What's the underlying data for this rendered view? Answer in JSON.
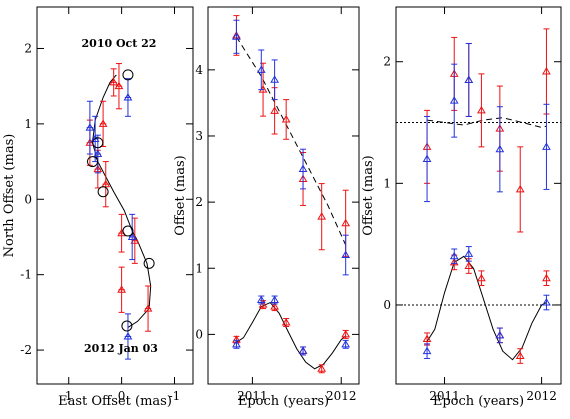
{
  "chart_data": [
    {
      "type": "scatter",
      "panel": "left",
      "xlabel": "East Offset (mas)",
      "ylabel": "North Offset (mas)",
      "xlim": [
        1.6,
        -1.35
      ],
      "ylim": [
        -2.45,
        2.55
      ],
      "xticks": [
        1,
        0,
        -1
      ],
      "yticks": [
        -2,
        -1,
        0,
        1,
        2
      ],
      "annotations": [
        "2010 Oct 22",
        "2012 Jan 03"
      ],
      "model_curve": {
        "x": [
          0.1,
          0.22,
          0.35,
          0.5,
          0.55,
          0.45,
          0.3,
          0.15,
          -0.05,
          -0.2,
          -0.3,
          -0.48,
          -0.55,
          -0.52,
          -0.3,
          -0.12
        ],
        "y": [
          1.65,
          1.55,
          1.35,
          1.05,
          0.75,
          0.5,
          0.3,
          0.1,
          -0.15,
          -0.42,
          -0.55,
          -0.85,
          -1.15,
          -1.45,
          -1.62,
          -1.7
        ]
      },
      "epoch_markers": {
        "x": [
          -0.12,
          0.45,
          0.55,
          0.35,
          -0.12,
          -0.52,
          -0.1
        ],
        "y": [
          1.65,
          0.75,
          0.5,
          0.1,
          -0.42,
          -0.85,
          -1.68
        ]
      },
      "series": [
        {
          "name": "red",
          "color": "#ee1111",
          "x": [
            0.15,
            0.05,
            0.35,
            0.6,
            0.45,
            0.3,
            0.0,
            -0.25,
            0.0,
            -0.5
          ],
          "y": [
            1.55,
            1.5,
            1.0,
            0.75,
            0.4,
            0.2,
            -0.45,
            -0.55,
            -1.2,
            -1.45
          ],
          "xerr": [
            0.06,
            0.06,
            0.06,
            0.06,
            0.06,
            0.06,
            0.06,
            0.06,
            0.06,
            0.06
          ],
          "yerr": [
            0.18,
            0.3,
            0.3,
            0.3,
            0.25,
            0.3,
            0.25,
            0.3,
            0.3,
            0.3
          ]
        },
        {
          "name": "blue",
          "color": "#2233dd",
          "x": [
            -0.12,
            0.6,
            0.5,
            0.45,
            -0.2,
            -0.12
          ],
          "y": [
            1.35,
            0.95,
            0.8,
            0.6,
            -0.5,
            -1.82
          ],
          "xerr": [
            0.06,
            0.06,
            0.06,
            0.06,
            0.06,
            0.06
          ],
          "yerr": [
            0.25,
            0.35,
            0.3,
            0.25,
            0.3,
            0.3
          ]
        }
      ]
    },
    {
      "type": "line",
      "panel": "middle",
      "xlabel": "Epoch (years)",
      "ylabel": "Offset (mas)",
      "xlim": [
        2010.5,
        2012.2
      ],
      "ylim": [
        -0.75,
        4.95
      ],
      "xticks": [
        2011,
        2012
      ],
      "yticks": [
        0,
        1,
        2,
        3,
        4
      ],
      "dashed_model": {
        "x": [
          2010.82,
          2011.1,
          2011.35,
          2011.6,
          2011.85,
          2012.05
        ],
        "y": [
          4.5,
          3.9,
          3.25,
          2.6,
          1.95,
          1.35
        ]
      },
      "solid_model": {
        "x": [
          2010.82,
          2010.9,
          2011.0,
          2011.1,
          2011.2,
          2011.3,
          2011.4,
          2011.5,
          2011.6,
          2011.7,
          2011.8,
          2011.9,
          2012.0,
          2012.05
        ],
        "y": [
          -0.12,
          -0.05,
          0.18,
          0.42,
          0.48,
          0.32,
          0.05,
          -0.22,
          -0.42,
          -0.52,
          -0.45,
          -0.28,
          -0.08,
          -0.02
        ]
      },
      "series": [
        {
          "name": "red",
          "color": "#ee1111",
          "x": [
            2010.82,
            2011.12,
            2011.25,
            2011.38,
            2011.57,
            2011.78,
            2012.05
          ],
          "y": [
            4.52,
            3.7,
            3.38,
            3.25,
            2.35,
            1.78,
            1.68
          ],
          "yerr": [
            0.3,
            0.4,
            0.35,
            0.3,
            0.4,
            0.5,
            0.5
          ]
        },
        {
          "name": "blue",
          "color": "#2233dd",
          "x": [
            2010.82,
            2011.1,
            2011.25,
            2011.57,
            2012.05
          ],
          "y": [
            4.5,
            4.0,
            3.85,
            2.5,
            1.2
          ],
          "yerr": [
            0.25,
            0.3,
            0.3,
            0.3,
            0.3
          ]
        },
        {
          "name": "red-residual",
          "color": "#ee1111",
          "x": [
            2010.82,
            2011.12,
            2011.25,
            2011.38,
            2011.57,
            2011.78,
            2012.05
          ],
          "y": [
            -0.08,
            0.45,
            0.42,
            0.18,
            -0.25,
            -0.52,
            0.0
          ],
          "yerr": [
            0.05,
            0.06,
            0.06,
            0.06,
            0.06,
            0.06,
            0.06
          ]
        },
        {
          "name": "blue-residual",
          "color": "#2233dd",
          "x": [
            2010.82,
            2011.1,
            2011.25,
            2011.57,
            2012.05
          ],
          "y": [
            -0.15,
            0.52,
            0.52,
            -0.25,
            -0.15
          ],
          "yerr": [
            0.06,
            0.06,
            0.06,
            0.06,
            0.06
          ]
        }
      ]
    },
    {
      "type": "line",
      "panel": "right",
      "xlabel": "Epoch (years)",
      "ylabel": "Offset (mas)",
      "xlim": [
        2010.5,
        2012.2
      ],
      "ylim": [
        -0.65,
        2.45
      ],
      "xticks": [
        2011,
        2012
      ],
      "yticks": [
        0,
        1,
        2
      ],
      "reference_lines": [
        1.5,
        0
      ],
      "dashed_model": {
        "x": [
          2010.82,
          2011.0,
          2011.2,
          2011.4,
          2011.6,
          2011.8,
          2012.0,
          2012.05
        ],
        "y": [
          1.52,
          1.5,
          1.48,
          1.52,
          1.54,
          1.5,
          1.46,
          1.47
        ]
      },
      "solid_model": {
        "x": [
          2010.82,
          2010.9,
          2011.0,
          2011.1,
          2011.2,
          2011.3,
          2011.4,
          2011.5,
          2011.6,
          2011.7,
          2011.8,
          2011.9,
          2012.0,
          2012.05
        ],
        "y": [
          -0.3,
          -0.2,
          0.1,
          0.35,
          0.4,
          0.3,
          0.05,
          -0.2,
          -0.38,
          -0.45,
          -0.35,
          -0.15,
          0.0,
          0.02
        ]
      },
      "series": [
        {
          "name": "red",
          "color": "#ee1111",
          "x": [
            2010.82,
            2011.1,
            2011.25,
            2011.38,
            2011.57,
            2011.78,
            2012.05
          ],
          "y": [
            1.3,
            1.9,
            1.85,
            1.6,
            1.45,
            0.95,
            1.92
          ],
          "yerr": [
            0.3,
            0.3,
            0.3,
            0.3,
            0.35,
            0.35,
            0.35
          ]
        },
        {
          "name": "blue",
          "color": "#2233dd",
          "x": [
            2010.82,
            2011.1,
            2011.25,
            2011.57,
            2012.05
          ],
          "y": [
            1.2,
            1.68,
            1.85,
            1.28,
            1.3
          ],
          "yerr": [
            0.35,
            0.3,
            0.3,
            0.35,
            0.35
          ]
        },
        {
          "name": "red-residual",
          "color": "#ee1111",
          "x": [
            2010.82,
            2011.1,
            2011.25,
            2011.38,
            2011.57,
            2011.78,
            2012.05
          ],
          "y": [
            -0.28,
            0.35,
            0.32,
            0.22,
            -0.25,
            -0.42,
            0.22
          ],
          "yerr": [
            0.05,
            0.06,
            0.06,
            0.06,
            0.06,
            0.06,
            0.06
          ]
        },
        {
          "name": "blue-residual",
          "color": "#2233dd",
          "x": [
            2010.82,
            2011.1,
            2011.25,
            2011.57,
            2012.05
          ],
          "y": [
            -0.38,
            0.4,
            0.42,
            -0.25,
            0.02
          ],
          "yerr": [
            0.06,
            0.06,
            0.06,
            0.06,
            0.06
          ]
        }
      ]
    }
  ]
}
